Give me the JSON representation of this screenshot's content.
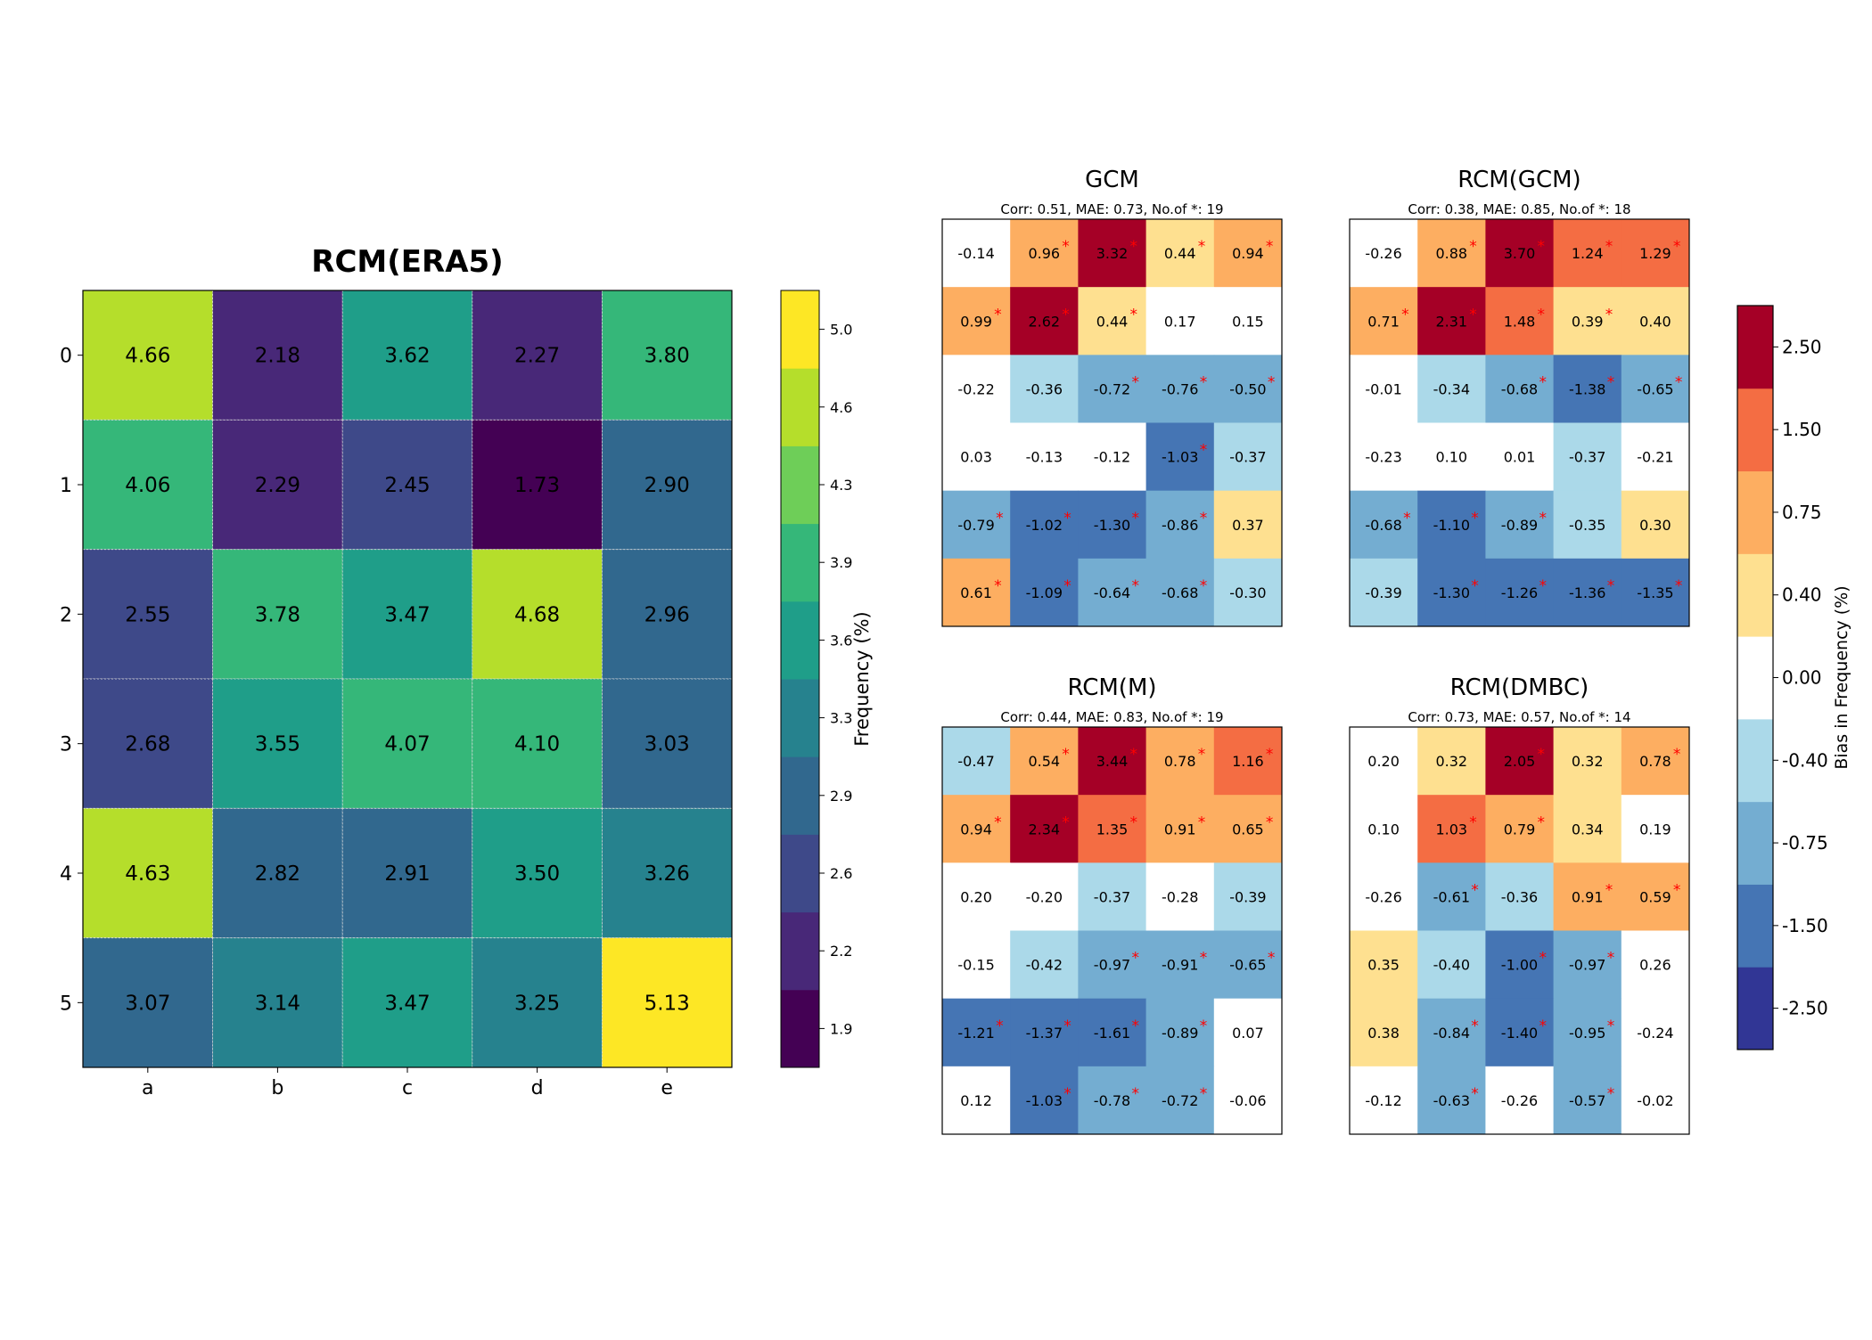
{
  "chart_data": [
    {
      "type": "heatmap",
      "title": "RCM(ERA5)",
      "row_labels": [
        "0",
        "1",
        "2",
        "3",
        "4",
        "5"
      ],
      "col_labels": [
        "a",
        "b",
        "c",
        "d",
        "e"
      ],
      "values": [
        [
          4.66,
          2.18,
          3.62,
          2.27,
          3.8
        ],
        [
          4.06,
          2.29,
          2.45,
          1.73,
          2.9
        ],
        [
          2.55,
          3.78,
          3.47,
          4.68,
          2.96
        ],
        [
          2.68,
          3.55,
          4.07,
          4.1,
          3.03
        ],
        [
          4.63,
          2.82,
          2.91,
          3.5,
          3.26
        ],
        [
          3.07,
          3.14,
          3.47,
          3.25,
          5.13
        ]
      ],
      "colorbar": {
        "label": "Frequency (%)",
        "ticks": [
          "1.9",
          "2.2",
          "2.6",
          "2.9",
          "3.3",
          "3.6",
          "3.9",
          "4.3",
          "4.6",
          "5.0"
        ],
        "range": [
          1.73,
          5.13
        ],
        "colors": [
          "#440154",
          "#482878",
          "#3e4989",
          "#31688e",
          "#26828e",
          "#1f9e89",
          "#35b779",
          "#6ece58",
          "#b5de2b",
          "#fde725"
        ]
      }
    },
    {
      "type": "heatmap",
      "title": "GCM",
      "subtitle": "Corr: 0.51, MAE:  0.73, No.of *:  19",
      "values": [
        [
          -0.14,
          0.96,
          3.32,
          0.44,
          0.94
        ],
        [
          0.99,
          2.62,
          0.44,
          0.17,
          0.15
        ],
        [
          -0.22,
          -0.36,
          -0.72,
          -0.76,
          -0.5
        ],
        [
          0.03,
          -0.13,
          -0.12,
          -1.03,
          -0.37
        ],
        [
          -0.79,
          -1.02,
          -1.3,
          -0.86,
          0.37
        ],
        [
          0.61,
          -1.09,
          -0.64,
          -0.68,
          -0.3
        ]
      ],
      "significant": [
        [
          0,
          1,
          1,
          1,
          1
        ],
        [
          1,
          1,
          1,
          0,
          0
        ],
        [
          0,
          0,
          1,
          1,
          1
        ],
        [
          0,
          0,
          0,
          1,
          0
        ],
        [
          1,
          1,
          1,
          1,
          0
        ],
        [
          1,
          1,
          1,
          1,
          0
        ]
      ]
    },
    {
      "type": "heatmap",
      "title": "RCM(GCM)",
      "subtitle": "Corr: 0.38, MAE:  0.85, No.of *:  18",
      "values": [
        [
          -0.26,
          0.88,
          3.7,
          1.24,
          1.29
        ],
        [
          0.71,
          2.31,
          1.48,
          0.39,
          0.4
        ],
        [
          -0.01,
          -0.34,
          -0.68,
          -1.38,
          -0.65
        ],
        [
          -0.23,
          0.1,
          0.01,
          -0.37,
          -0.21
        ],
        [
          -0.68,
          -1.1,
          -0.89,
          -0.35,
          0.3
        ],
        [
          -0.39,
          -1.3,
          -1.26,
          -1.36,
          -1.35
        ]
      ],
      "significant": [
        [
          0,
          1,
          1,
          1,
          1
        ],
        [
          1,
          1,
          1,
          1,
          0
        ],
        [
          0,
          0,
          1,
          1,
          1
        ],
        [
          0,
          0,
          0,
          0,
          0
        ],
        [
          1,
          1,
          1,
          0,
          0
        ],
        [
          0,
          1,
          1,
          1,
          1
        ]
      ]
    },
    {
      "type": "heatmap",
      "title": "RCM(M)",
      "subtitle": "Corr: 0.44, MAE:  0.83, No.of *:  19",
      "values": [
        [
          -0.47,
          0.54,
          3.44,
          0.78,
          1.16
        ],
        [
          0.94,
          2.34,
          1.35,
          0.91,
          0.65
        ],
        [
          0.2,
          -0.2,
          -0.37,
          -0.28,
          -0.39
        ],
        [
          -0.15,
          -0.42,
          -0.97,
          -0.91,
          -0.65
        ],
        [
          -1.21,
          -1.37,
          -1.61,
          -0.89,
          0.07
        ],
        [
          0.12,
          -1.03,
          -0.78,
          -0.72,
          -0.06
        ]
      ],
      "significant": [
        [
          0,
          1,
          1,
          1,
          1
        ],
        [
          1,
          1,
          1,
          1,
          1
        ],
        [
          0,
          0,
          0,
          0,
          0
        ],
        [
          0,
          0,
          1,
          1,
          1
        ],
        [
          1,
          1,
          1,
          1,
          0
        ],
        [
          0,
          1,
          1,
          1,
          0
        ]
      ]
    },
    {
      "type": "heatmap",
      "title": "RCM(DMBC)",
      "subtitle": "Corr: 0.73, MAE:  0.57, No.of *:  14",
      "values": [
        [
          0.2,
          0.32,
          2.05,
          0.32,
          0.78
        ],
        [
          0.1,
          1.03,
          0.79,
          0.34,
          0.19
        ],
        [
          -0.26,
          -0.61,
          -0.36,
          0.91,
          0.59
        ],
        [
          0.35,
          -0.4,
          -1.0,
          -0.97,
          0.26
        ],
        [
          0.38,
          -0.84,
          -1.4,
          -0.95,
          -0.24
        ],
        [
          -0.12,
          -0.63,
          -0.26,
          -0.57,
          -0.02
        ]
      ],
      "significant": [
        [
          0,
          0,
          1,
          0,
          1
        ],
        [
          0,
          1,
          1,
          0,
          0
        ],
        [
          0,
          1,
          0,
          1,
          1
        ],
        [
          0,
          0,
          1,
          1,
          0
        ],
        [
          0,
          1,
          1,
          1,
          0
        ],
        [
          0,
          1,
          0,
          1,
          0
        ]
      ]
    }
  ],
  "bias_colorbar": {
    "label": "Bias in Frequency (%)",
    "ticks": [
      "-2.50",
      "-1.50",
      "-0.75",
      "-0.40",
      "0.00",
      "0.40",
      "0.75",
      "1.50",
      "2.50"
    ],
    "colors": [
      "#313695",
      "#4575b4",
      "#74add1",
      "#abd9e9",
      "#ffffff",
      "#fee090",
      "#fdae61",
      "#f46d43",
      "#a50026"
    ]
  },
  "significance_marker": "*",
  "marker_color": "#ff0000"
}
